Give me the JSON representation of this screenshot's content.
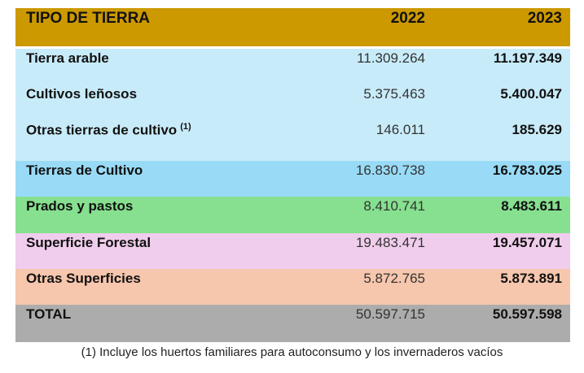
{
  "header": {
    "label": "TIPO DE TIERRA",
    "col1": "2022",
    "col2": "2023",
    "color": "#cc9900"
  },
  "rows": [
    {
      "label": "Tierra arable",
      "v2022": "11.309.264",
      "v2023": "11.197.349",
      "color": "#c8ebf9"
    },
    {
      "label": "Cultivos leñosos",
      "v2022": "5.375.463",
      "v2023": "5.400.047",
      "color": "#c8ebf9"
    },
    {
      "label": "Otras tierras de cultivo",
      "note": "(1)",
      "v2022": "146.011",
      "v2023": "185.629",
      "color": "#c8ebf9"
    },
    {
      "label": "Tierras de Cultivo",
      "v2022": "16.830.738",
      "v2023": "16.783.025",
      "color": "#99dbf6"
    },
    {
      "label": "Prados y pastos",
      "v2022": "8.410.741",
      "v2023": "8.483.611",
      "color": "#86e08f"
    },
    {
      "label": "Superficie Forestal",
      "v2022": "19.483.471",
      "v2023": "19.457.071",
      "color": "#f0cdec"
    },
    {
      "label": "Otras Superficies",
      "v2022": "5.872.765",
      "v2023": "5.873.891",
      "color": "#f6c6ad"
    },
    {
      "label": "TOTAL",
      "v2022": "50.597.715",
      "v2023": "50.597.598",
      "color": "#acacac"
    }
  ],
  "footnote": "(1) Incluye los huertos familiares para autoconsumo y los invernaderos vacíos"
}
